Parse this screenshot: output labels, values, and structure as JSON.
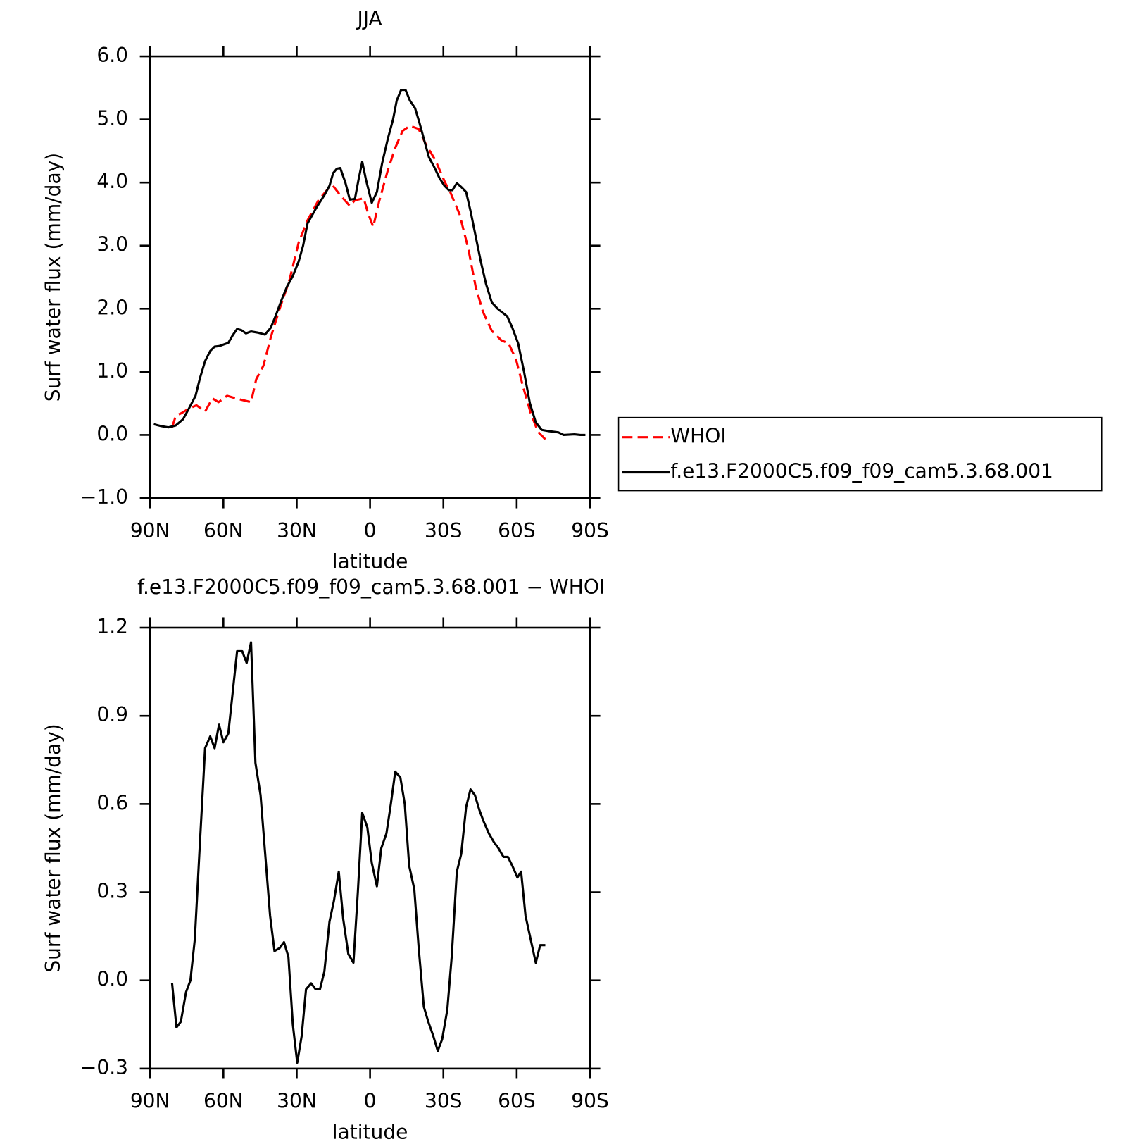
{
  "chart_data": [
    {
      "type": "line",
      "title": "JJA",
      "xlabel": "latitude",
      "ylabel": "Surf water flux (mm/day)",
      "xlim": [
        90,
        -90
      ],
      "xticks": [
        {
          "value": 90,
          "label": "90N"
        },
        {
          "value": 60,
          "label": "60N"
        },
        {
          "value": 30,
          "label": "30N"
        },
        0,
        {
          "value": -30,
          "label": "30S"
        },
        {
          "value": -60,
          "label": "60S"
        },
        {
          "value": -90,
          "label": "90S"
        }
      ],
      "ylim": [
        -1,
        6
      ],
      "yticks": [
        {
          "value": -1,
          "label": "−1.0"
        },
        {
          "value": 0,
          "label": "0.0"
        },
        {
          "value": 1,
          "label": "1.0"
        },
        {
          "value": 2,
          "label": "2.0"
        },
        {
          "value": 3,
          "label": "3.0"
        },
        {
          "value": 4,
          "label": "4.0"
        },
        {
          "value": 5,
          "label": "5.0"
        },
        {
          "value": 6,
          "label": "6.0"
        }
      ],
      "legend": "right",
      "series": [
        {
          "name": "WHOI",
          "color": "#ff0000",
          "linestyle": "dashed",
          "x": [
            81,
            79.5,
            77,
            74,
            71,
            67.5,
            64.5,
            62,
            58.5,
            54,
            48.7,
            46.6,
            43.6,
            40.6,
            37,
            33,
            29.2,
            25.6,
            21.1,
            17.2,
            15.2,
            12.2,
            8.3,
            6.2,
            2.6,
            0.7,
            -1.3,
            -3.7,
            -7.3,
            -10.3,
            -13.3,
            -16.3,
            -19.9,
            -22.9,
            -26.8,
            -30.7,
            -32.8,
            -36.6,
            -40.2,
            -43.2,
            -46.2,
            -49.8,
            -53.7,
            -56.7,
            -59.7,
            -62.7,
            -65.7,
            -68.7,
            -71.7
          ],
          "values": [
            0.12,
            0.3,
            0.35,
            0.42,
            0.47,
            0.37,
            0.58,
            0.52,
            0.62,
            0.57,
            0.52,
            0.88,
            1.1,
            1.55,
            2.0,
            2.45,
            3.05,
            3.4,
            3.72,
            3.9,
            3.95,
            3.8,
            3.63,
            3.72,
            3.75,
            3.5,
            3.3,
            3.7,
            4.2,
            4.55,
            4.82,
            4.9,
            4.85,
            4.6,
            4.35,
            4.0,
            3.85,
            3.5,
            2.95,
            2.35,
            1.95,
            1.65,
            1.5,
            1.45,
            1.2,
            0.75,
            0.35,
            0.05,
            -0.07
          ]
        },
        {
          "name": "f.e13.F2000C5.f09_f09_cam5.3.68.001",
          "color": "#000000",
          "linestyle": "solid",
          "x": [
            88.5,
            85.5,
            82.5,
            79.5,
            76.5,
            74.1,
            71.4,
            69.6,
            67.5,
            65.4,
            63.6,
            61.6,
            58,
            56.2,
            54.4,
            52.6,
            50.8,
            48.7,
            45.7,
            43,
            40.6,
            38.5,
            36.4,
            34,
            31.6,
            29.2,
            27.4,
            25.6,
            22,
            18.7,
            16.6,
            15.1,
            13.6,
            12.2,
            10.1,
            8.3,
            6.2,
            4.7,
            3.2,
            1.7,
            -0.7,
            -2.8,
            -4.9,
            -7.3,
            -9.4,
            -10.9,
            -12.7,
            -14.5,
            -16.3,
            -18.4,
            -20.2,
            -22.3,
            -24.1,
            -26.2,
            -28.3,
            -30.4,
            -32.2,
            -33.7,
            -35.5,
            -37.3,
            -39.3,
            -41.1,
            -43.2,
            -45.3,
            -47.4,
            -49.8,
            -52.2,
            -56.1,
            -58.2,
            -60.6,
            -63,
            -65.4,
            -67.8,
            -70.2,
            -73.2,
            -77.1,
            -79.2,
            -83.6,
            -86,
            -88.1
          ],
          "values": [
            0.17,
            0.14,
            0.12,
            0.15,
            0.25,
            0.42,
            0.62,
            0.9,
            1.17,
            1.33,
            1.4,
            1.41,
            1.46,
            1.58,
            1.68,
            1.66,
            1.61,
            1.64,
            1.62,
            1.59,
            1.7,
            1.9,
            2.12,
            2.35,
            2.52,
            2.75,
            3.0,
            3.35,
            3.6,
            3.8,
            3.95,
            4.15,
            4.22,
            4.23,
            4.0,
            3.73,
            3.74,
            4.05,
            4.33,
            4.05,
            3.68,
            3.85,
            4.3,
            4.7,
            5.0,
            5.3,
            5.47,
            5.47,
            5.3,
            5.18,
            4.95,
            4.65,
            4.4,
            4.25,
            4.08,
            3.95,
            3.88,
            3.88,
            3.99,
            3.93,
            3.85,
            3.55,
            3.15,
            2.75,
            2.4,
            2.1,
            2.0,
            1.88,
            1.7,
            1.45,
            1.0,
            0.5,
            0.2,
            0.08,
            0.06,
            0.04,
            0.0,
            0.01,
            0.0,
            0.0
          ]
        }
      ]
    },
    {
      "type": "line",
      "title": "f.e13.F2000C5.f09_f09_cam5.3.68.001 − WHOI",
      "xlabel": "latitude",
      "ylabel": "Surf water flux (mm/day)",
      "xlim": [
        90,
        -90
      ],
      "xticks": [
        {
          "value": 90,
          "label": "90N"
        },
        {
          "value": 60,
          "label": "60N"
        },
        {
          "value": 30,
          "label": "30N"
        },
        0,
        {
          "value": -30,
          "label": "30S"
        },
        {
          "value": -60,
          "label": "60S"
        },
        {
          "value": -90,
          "label": "90S"
        }
      ],
      "ylim": [
        -0.3,
        1.2
      ],
      "yticks": [
        {
          "value": -0.3,
          "label": "−0.3"
        },
        {
          "value": 0,
          "label": "0.0"
        },
        0.3,
        0.6,
        0.9,
        1.2
      ],
      "series": [
        {
          "color": "#000000",
          "linestyle": "solid",
          "x": [
            81,
            79.2,
            77.4,
            75.3,
            73.5,
            71.7,
            69.6,
            67.5,
            65.4,
            63.6,
            61.8,
            60,
            58,
            56.2,
            54.4,
            52.3,
            50.5,
            48.7,
            46.9,
            44.8,
            43,
            40.9,
            39.1,
            37,
            35.2,
            33.4,
            31.6,
            29.8,
            28,
            26.2,
            24.1,
            22.3,
            20.5,
            18.7,
            16.6,
            14.8,
            12.8,
            11,
            8.9,
            6.8,
            5,
            3.2,
            1.1,
            -0.7,
            -2.8,
            -4.6,
            -6.7,
            -8.5,
            -10.3,
            -12.4,
            -14.2,
            -16,
            -18.1,
            -19.9,
            -22,
            -23.8,
            -25.9,
            -27.7,
            -29.5,
            -31.6,
            -33.4,
            -35.5,
            -37.3,
            -39.3,
            -41.1,
            -42.9,
            -44.7,
            -46.5,
            -48.6,
            -50.7,
            -52.5,
            -54.6,
            -56.4,
            -58.2,
            -60.3,
            -61.8,
            -63.6,
            -65.7,
            -67.8,
            -69.6,
            -71.7
          ],
          "values": [
            -0.01,
            -0.16,
            -0.14,
            -0.04,
            0.0,
            0.14,
            0.47,
            0.79,
            0.83,
            0.79,
            0.87,
            0.81,
            0.84,
            0.98,
            1.12,
            1.12,
            1.08,
            1.15,
            0.74,
            0.63,
            0.44,
            0.22,
            0.1,
            0.11,
            0.13,
            0.08,
            -0.15,
            -0.28,
            -0.19,
            -0.03,
            -0.01,
            -0.03,
            -0.03,
            0.03,
            0.2,
            0.27,
            0.37,
            0.21,
            0.09,
            0.06,
            0.3,
            0.57,
            0.52,
            0.4,
            0.32,
            0.45,
            0.5,
            0.6,
            0.71,
            0.69,
            0.6,
            0.39,
            0.31,
            0.11,
            -0.09,
            -0.14,
            -0.19,
            -0.24,
            -0.2,
            -0.1,
            0.08,
            0.37,
            0.43,
            0.59,
            0.65,
            0.63,
            0.58,
            0.54,
            0.5,
            0.47,
            0.45,
            0.42,
            0.42,
            0.39,
            0.35,
            0.37,
            0.22,
            0.14,
            0.06,
            0.12,
            0.12
          ]
        }
      ]
    }
  ]
}
